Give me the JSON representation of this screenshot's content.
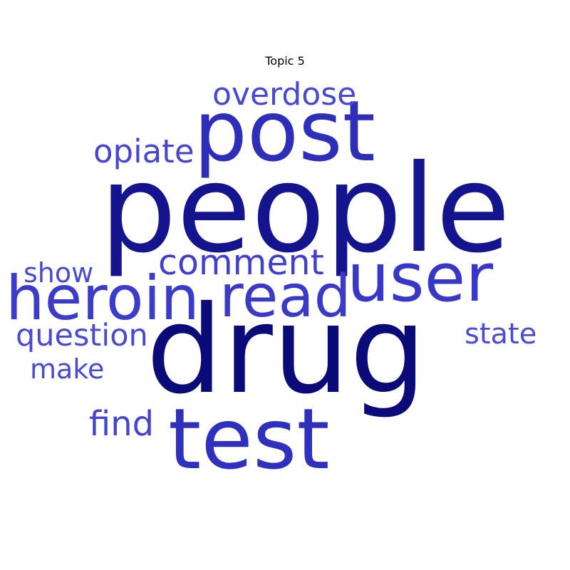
{
  "chart_data": {
    "type": "wordcloud",
    "title": "Topic 5",
    "words": [
      {
        "text": "people",
        "weight": 1.0,
        "color": "#14148f"
      },
      {
        "text": "drug",
        "weight": 0.97,
        "color": "#0a0a78"
      },
      {
        "text": "post",
        "weight": 0.7,
        "color": "#2e2eb8"
      },
      {
        "text": "test",
        "weight": 0.7,
        "color": "#3030be"
      },
      {
        "text": "user",
        "weight": 0.56,
        "color": "#3838c8"
      },
      {
        "text": "heroin",
        "weight": 0.52,
        "color": "#3c3cca"
      },
      {
        "text": "read",
        "weight": 0.5,
        "color": "#3a3ac6"
      },
      {
        "text": "comment",
        "weight": 0.33,
        "color": "#4040cc"
      },
      {
        "text": "overdose",
        "weight": 0.31,
        "color": "#4848d0"
      },
      {
        "text": "opiate",
        "weight": 0.31,
        "color": "#4646ce"
      },
      {
        "text": "find",
        "weight": 0.31,
        "color": "#4444cc"
      },
      {
        "text": "question",
        "weight": 0.28,
        "color": "#4a4ad0"
      },
      {
        "text": "state",
        "weight": 0.26,
        "color": "#4c4cd2"
      },
      {
        "text": "show",
        "weight": 0.25,
        "color": "#4a4ad0"
      },
      {
        "text": "make",
        "weight": 0.25,
        "color": "#4a4ad0"
      }
    ]
  }
}
